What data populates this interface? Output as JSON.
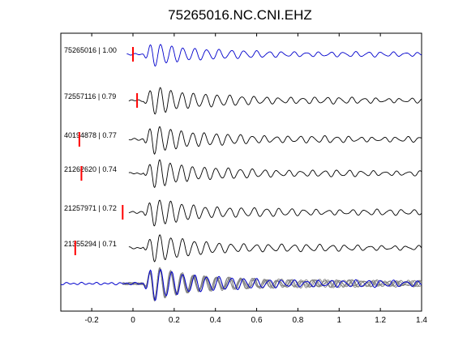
{
  "chart_data": {
    "type": "line",
    "title": "75265016.NC.CNI.EHZ",
    "xlabel": "",
    "ylabel": "",
    "xlim": [
      -0.35,
      1.4
    ],
    "x_ticks": [
      -0.2,
      0,
      0.2,
      0.4,
      0.6,
      0.8,
      1,
      1.2,
      1.4
    ],
    "x_tick_labels": [
      "-0.2",
      "0",
      "0.2",
      "0.4",
      "0.6",
      "0.8",
      "1",
      "1.2",
      "1.4"
    ],
    "grid": false,
    "traces": [
      {
        "label": "75265016 | 1.00",
        "event_id": "75265016",
        "correlation": 1.0,
        "pick_time": 0.0,
        "color": "#0000cc"
      },
      {
        "label": "72557116 | 0.79",
        "event_id": "72557116",
        "correlation": 0.79,
        "pick_time": 0.02,
        "color": "#000000"
      },
      {
        "label": "40194878 | 0.77",
        "event_id": "40194878",
        "correlation": 0.77,
        "pick_time": -0.26,
        "color": "#000000"
      },
      {
        "label": "21262620 | 0.74",
        "event_id": "21262620",
        "correlation": 0.74,
        "pick_time": -0.25,
        "color": "#000000"
      },
      {
        "label": "21257971 | 0.72",
        "event_id": "21257971",
        "correlation": 0.72,
        "pick_time": -0.05,
        "color": "#000000"
      },
      {
        "label": "21355294 | 0.71",
        "event_id": "21355294",
        "correlation": 0.71,
        "pick_time": -0.28,
        "color": "#000000"
      }
    ],
    "stack": {
      "overlay_color": "#808080",
      "reference_color": "#0000cc"
    },
    "pick_marker_color": "#ff0000"
  }
}
